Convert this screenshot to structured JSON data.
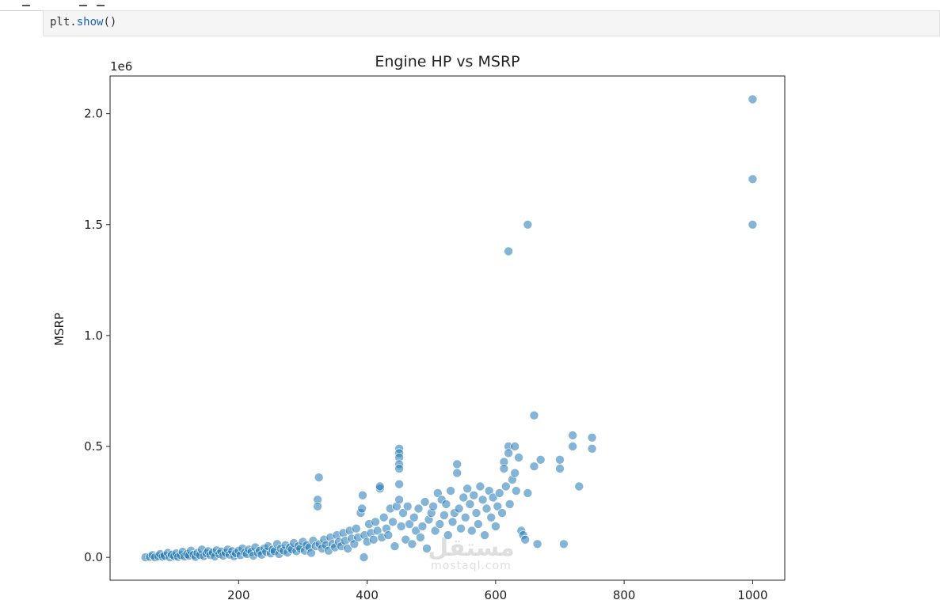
{
  "notebook": {
    "code_object": "plt",
    "code_dot": ".",
    "code_fn": "show",
    "code_parens": "()"
  },
  "watermark": {
    "logo": "مستقل",
    "site": "mostaql.com"
  },
  "chart_data": {
    "type": "scatter",
    "title": "Engine HP vs MSRP",
    "xlabel": "",
    "ylabel": "MSRP",
    "y_offset_label": "1e6",
    "xlim": [
      0,
      1050
    ],
    "ylim": [
      -0.103,
      2.17
    ],
    "x_ticks": [
      200,
      400,
      600,
      800,
      1000
    ],
    "x_tick_labels": [
      "200",
      "400",
      "600",
      "800",
      "1000"
    ],
    "y_ticks": [
      0.0,
      0.5,
      1.0,
      1.5,
      2.0
    ],
    "y_tick_labels": [
      "0.0",
      "0.5",
      "1.0",
      "1.5",
      "2.0"
    ],
    "grid": false,
    "point_color": "#1f77b4",
    "point_alpha": 0.55,
    "points": [
      [
        55,
        0.0
      ],
      [
        62,
        0.002
      ],
      [
        66,
        0.01
      ],
      [
        70,
        0.0
      ],
      [
        75,
        0.005
      ],
      [
        78,
        0.015
      ],
      [
        82,
        0.003
      ],
      [
        85,
        0.008
      ],
      [
        90,
        0.02
      ],
      [
        93,
        0.0
      ],
      [
        96,
        0.012
      ],
      [
        100,
        0.005
      ],
      [
        103,
        0.018
      ],
      [
        106,
        0.002
      ],
      [
        110,
        0.01
      ],
      [
        113,
        0.025
      ],
      [
        116,
        0.004
      ],
      [
        120,
        0.015
      ],
      [
        123,
        0.008
      ],
      [
        126,
        0.03
      ],
      [
        130,
        0.012
      ],
      [
        133,
        0.002
      ],
      [
        136,
        0.02
      ],
      [
        140,
        0.01
      ],
      [
        143,
        0.035
      ],
      [
        146,
        0.006
      ],
      [
        150,
        0.018
      ],
      [
        153,
        0.028
      ],
      [
        156,
        0.01
      ],
      [
        160,
        0.022
      ],
      [
        163,
        0.004
      ],
      [
        166,
        0.032
      ],
      [
        170,
        0.015
      ],
      [
        173,
        0.026
      ],
      [
        176,
        0.008
      ],
      [
        180,
        0.02
      ],
      [
        183,
        0.035
      ],
      [
        186,
        0.012
      ],
      [
        190,
        0.028
      ],
      [
        193,
        0.005
      ],
      [
        196,
        0.018
      ],
      [
        200,
        0.03
      ],
      [
        203,
        0.01
      ],
      [
        206,
        0.04
      ],
      [
        210,
        0.022
      ],
      [
        213,
        0.015
      ],
      [
        216,
        0.035
      ],
      [
        220,
        0.025
      ],
      [
        223,
        0.008
      ],
      [
        226,
        0.045
      ],
      [
        230,
        0.02
      ],
      [
        233,
        0.03
      ],
      [
        236,
        0.012
      ],
      [
        240,
        0.04
      ],
      [
        243,
        0.025
      ],
      [
        246,
        0.05
      ],
      [
        250,
        0.018
      ],
      [
        253,
        0.035
      ],
      [
        256,
        0.028
      ],
      [
        260,
        0.06
      ],
      [
        263,
        0.015
      ],
      [
        266,
        0.04
      ],
      [
        270,
        0.03
      ],
      [
        273,
        0.055
      ],
      [
        276,
        0.022
      ],
      [
        280,
        0.045
      ],
      [
        283,
        0.035
      ],
      [
        286,
        0.065
      ],
      [
        290,
        0.028
      ],
      [
        293,
        0.05
      ],
      [
        296,
        0.04
      ],
      [
        300,
        0.07
      ],
      [
        303,
        0.03
      ],
      [
        306,
        0.055
      ],
      [
        310,
        0.045
      ],
      [
        313,
        0.02
      ],
      [
        316,
        0.075
      ],
      [
        320,
        0.05
      ],
      [
        323,
        0.26
      ],
      [
        323,
        0.23
      ],
      [
        325,
        0.36
      ],
      [
        326,
        0.06
      ],
      [
        330,
        0.04
      ],
      [
        333,
        0.08
      ],
      [
        336,
        0.055
      ],
      [
        340,
        0.03
      ],
      [
        343,
        0.09
      ],
      [
        346,
        0.06
      ],
      [
        350,
        0.045
      ],
      [
        353,
        0.1
      ],
      [
        356,
        0.07
      ],
      [
        360,
        0.05
      ],
      [
        363,
        0.11
      ],
      [
        366,
        0.075
      ],
      [
        370,
        0.04
      ],
      [
        373,
        0.12
      ],
      [
        376,
        0.085
      ],
      [
        380,
        0.06
      ],
      [
        383,
        0.13
      ],
      [
        386,
        0.09
      ],
      [
        390,
        0.2
      ],
      [
        392,
        0.22
      ],
      [
        393,
        0.28
      ],
      [
        395,
        0.0
      ],
      [
        396,
        0.1
      ],
      [
        400,
        0.07
      ],
      [
        403,
        0.15
      ],
      [
        406,
        0.11
      ],
      [
        410,
        0.08
      ],
      [
        413,
        0.16
      ],
      [
        416,
        0.12
      ],
      [
        420,
        0.31
      ],
      [
        420,
        0.32
      ],
      [
        423,
        0.09
      ],
      [
        426,
        0.18
      ],
      [
        430,
        0.13
      ],
      [
        433,
        0.1
      ],
      [
        436,
        0.22
      ],
      [
        440,
        0.16
      ],
      [
        443,
        0.05
      ],
      [
        446,
        0.23
      ],
      [
        450,
        0.49
      ],
      [
        450,
        0.47
      ],
      [
        450,
        0.45
      ],
      [
        450,
        0.42
      ],
      [
        450,
        0.4
      ],
      [
        450,
        0.33
      ],
      [
        450,
        0.26
      ],
      [
        453,
        0.14
      ],
      [
        456,
        0.2
      ],
      [
        460,
        0.08
      ],
      [
        463,
        0.23
      ],
      [
        466,
        0.15
      ],
      [
        470,
        0.06
      ],
      [
        473,
        0.18
      ],
      [
        476,
        0.12
      ],
      [
        480,
        0.22
      ],
      [
        483,
        0.09
      ],
      [
        486,
        0.14
      ],
      [
        490,
        0.25
      ],
      [
        493,
        0.04
      ],
      [
        496,
        0.17
      ],
      [
        500,
        0.2
      ],
      [
        503,
        0.23
      ],
      [
        506,
        0.12
      ],
      [
        510,
        0.29
      ],
      [
        513,
        0.15
      ],
      [
        516,
        0.26
      ],
      [
        520,
        0.19
      ],
      [
        523,
        0.24
      ],
      [
        526,
        0.1
      ],
      [
        530,
        0.3
      ],
      [
        533,
        0.16
      ],
      [
        536,
        0.2
      ],
      [
        540,
        0.42
      ],
      [
        540,
        0.38
      ],
      [
        543,
        0.22
      ],
      [
        546,
        0.13
      ],
      [
        550,
        0.27
      ],
      [
        553,
        0.18
      ],
      [
        556,
        0.31
      ],
      [
        560,
        0.24
      ],
      [
        563,
        0.12
      ],
      [
        566,
        0.28
      ],
      [
        570,
        0.2
      ],
      [
        573,
        0.15
      ],
      [
        576,
        0.32
      ],
      [
        580,
        0.26
      ],
      [
        583,
        0.1
      ],
      [
        586,
        0.22
      ],
      [
        590,
        0.3
      ],
      [
        593,
        0.18
      ],
      [
        596,
        0.27
      ],
      [
        600,
        0.14
      ],
      [
        603,
        0.23
      ],
      [
        606,
        0.29
      ],
      [
        610,
        0.2
      ],
      [
        613,
        0.43
      ],
      [
        613,
        0.4
      ],
      [
        616,
        0.32
      ],
      [
        620,
        1.38
      ],
      [
        620,
        0.5
      ],
      [
        620,
        0.47
      ],
      [
        622,
        0.24
      ],
      [
        626,
        0.35
      ],
      [
        630,
        0.5
      ],
      [
        630,
        0.38
      ],
      [
        632,
        0.3
      ],
      [
        636,
        0.45
      ],
      [
        640,
        0.12
      ],
      [
        643,
        0.1
      ],
      [
        646,
        0.08
      ],
      [
        650,
        1.5
      ],
      [
        650,
        0.29
      ],
      [
        660,
        0.64
      ],
      [
        660,
        0.41
      ],
      [
        665,
        0.06
      ],
      [
        670,
        0.44
      ],
      [
        700,
        0.44
      ],
      [
        700,
        0.4
      ],
      [
        706,
        0.06
      ],
      [
        720,
        0.55
      ],
      [
        720,
        0.5
      ],
      [
        730,
        0.32
      ],
      [
        750,
        0.54
      ],
      [
        750,
        0.49
      ],
      [
        1000,
        2.065
      ],
      [
        1000,
        1.705
      ],
      [
        1000,
        1.5
      ]
    ]
  }
}
